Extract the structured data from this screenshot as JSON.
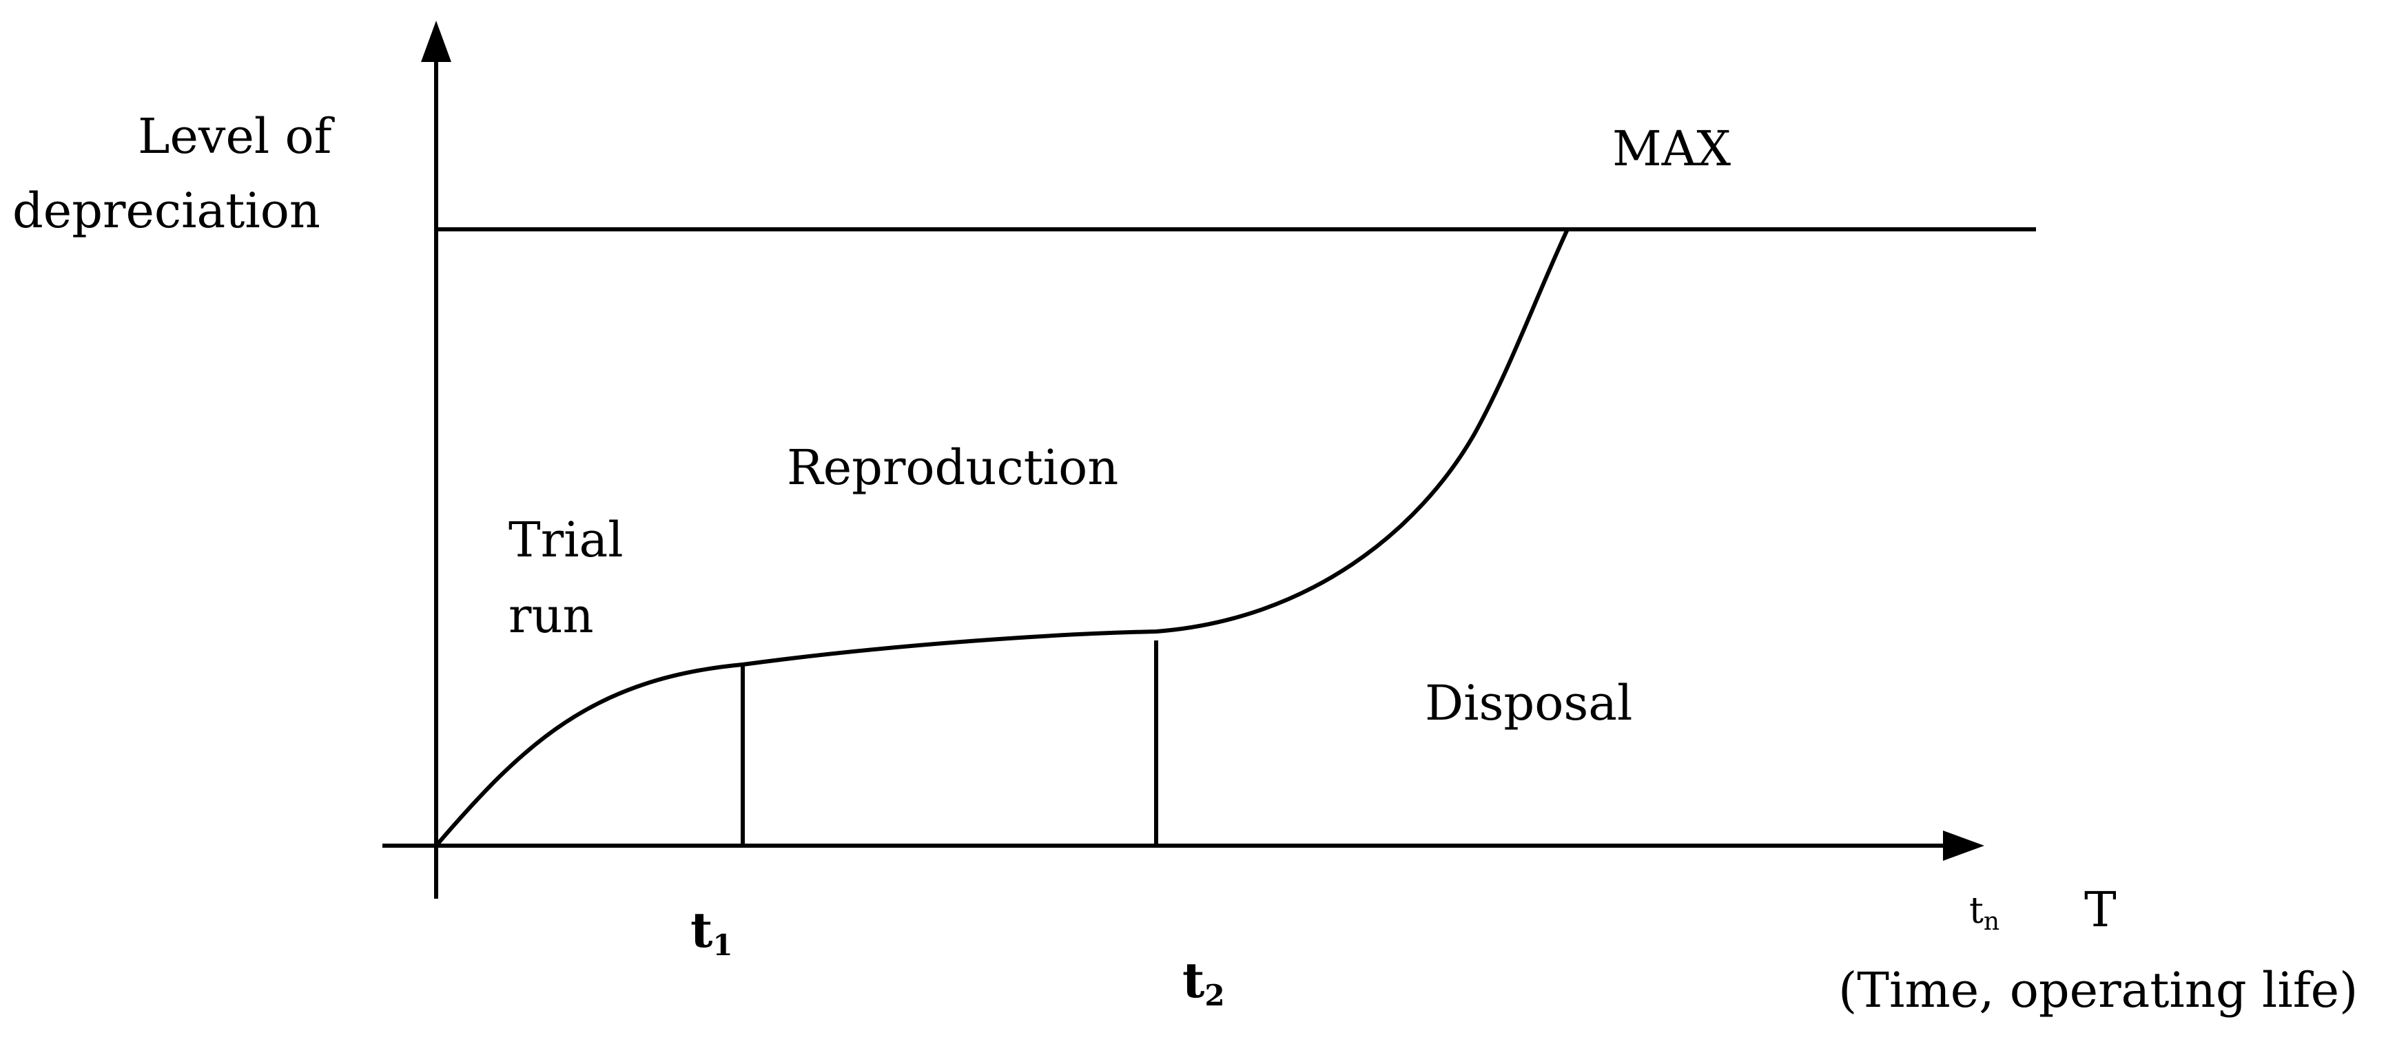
{
  "axes": {
    "y_label_line1": "Level of",
    "y_label_line2": "depreciation",
    "x_label_letter": "T",
    "x_label_desc": "(Time, operating life)"
  },
  "max_line": {
    "label": "MAX"
  },
  "phases": {
    "trial_line1": "Trial",
    "trial_line2": "run",
    "reproduction": "Reproduction",
    "disposal": "Disposal"
  },
  "time_marks": {
    "t1_base": "t",
    "t1_sub": "1",
    "t2_base": "t",
    "t2_sub": "2",
    "tn_base": "t",
    "tn_sub": "n"
  },
  "colors": {
    "ink": "#000000",
    "background": "#ffffff"
  }
}
